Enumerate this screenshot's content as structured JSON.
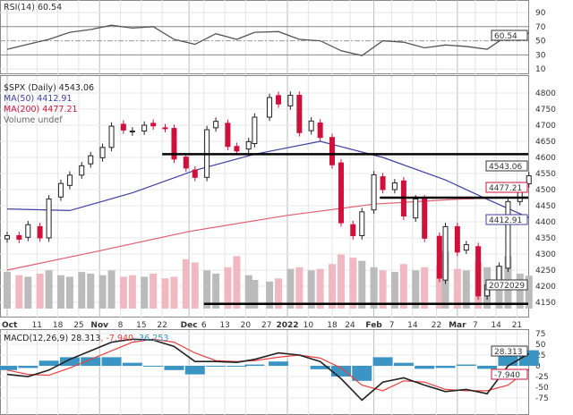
{
  "rsi_panel": {
    "title": "RSI(14) 60.54",
    "value_tag": "60.54",
    "ticks": [
      90,
      70,
      50,
      30,
      10
    ]
  },
  "price_panel": {
    "title": "$SPX (Daily) 4543.06",
    "ma50_label": "MA(50) 4412.91",
    "ma200_label": "MA(200) 4477.21",
    "volume_label": "Volume undef",
    "tags": {
      "close": "4543.06",
      "ma200": "4477.21",
      "ma50": "4412.91",
      "volume": "2072029"
    },
    "ticks": [
      4800,
      4750,
      4700,
      4650,
      4600,
      4550,
      4500,
      4450,
      4400,
      4350,
      4300,
      4250,
      4200,
      4150
    ]
  },
  "macd_panel": {
    "title_macd": "MACD(12,26,9) 28.313",
    "title_signal": ", -7.940",
    "title_hist": ", 36.253",
    "tags": {
      "macd": "28.313",
      "signal": "-7.940",
      "hist": "36.253"
    },
    "ticks": [
      75,
      50,
      25,
      0,
      -25,
      -50,
      -75
    ]
  },
  "colors": {
    "up": "#ffffff",
    "down": "#d0103a",
    "ma50": "#4040a0",
    "ma200": "#e06070",
    "macd": "#222222",
    "signal": "#e84040",
    "hist": "#3a94c4",
    "vol_up": "#bbbbbb",
    "vol_down": "#f0b8c0"
  },
  "chart_data": [
    {
      "type": "line",
      "title": "RSI(14)",
      "ylim": [
        0,
        100
      ],
      "x": [
        "2021-10-01",
        "2021-10-08",
        "2021-10-15",
        "2021-10-22",
        "2021-10-29",
        "2021-11-05",
        "2021-11-12",
        "2021-11-19",
        "2021-11-26",
        "2021-12-03",
        "2021-12-10",
        "2021-12-17",
        "2021-12-23",
        "2021-12-31",
        "2022-01-07",
        "2022-01-14",
        "2022-01-21",
        "2022-01-28",
        "2022-02-04",
        "2022-02-11",
        "2022-02-18",
        "2022-02-25",
        "2022-03-04",
        "2022-03-11",
        "2022-03-18",
        "2022-03-25"
      ],
      "series": [
        {
          "name": "RSI(14)",
          "values": [
            38,
            45,
            52,
            62,
            66,
            72,
            68,
            70,
            52,
            45,
            60,
            52,
            62,
            63,
            52,
            50,
            36,
            29,
            50,
            48,
            40,
            44,
            42,
            38,
            58,
            60.54
          ]
        }
      ]
    },
    {
      "type": "candlestick",
      "title": "$SPX (Daily)",
      "ylim": [
        4130,
        4830
      ],
      "x": [
        "2021-10-01",
        "2021-10-05",
        "2021-10-08",
        "2021-10-12",
        "2021-10-15",
        "2021-10-19",
        "2021-10-22",
        "2021-10-26",
        "2021-10-29",
        "2021-11-02",
        "2021-11-05",
        "2021-11-09",
        "2021-11-12",
        "2021-11-16",
        "2021-11-19",
        "2021-11-23",
        "2021-11-26",
        "2021-11-30",
        "2021-12-03",
        "2021-12-07",
        "2021-12-10",
        "2021-12-14",
        "2021-12-17",
        "2021-12-21",
        "2021-12-23",
        "2021-12-28",
        "2021-12-31",
        "2022-01-04",
        "2022-01-07",
        "2022-01-11",
        "2022-01-14",
        "2022-01-18",
        "2022-01-21",
        "2022-01-25",
        "2022-01-28",
        "2022-02-01",
        "2022-02-04",
        "2022-02-08",
        "2022-02-11",
        "2022-02-15",
        "2022-02-18",
        "2022-02-23",
        "2022-02-25",
        "2022-03-01",
        "2022-03-04",
        "2022-03-08",
        "2022-03-11",
        "2022-03-15",
        "2022-03-18",
        "2022-03-22",
        "2022-03-25"
      ],
      "close": [
        4357,
        4346,
        4391,
        4350,
        4471,
        4519,
        4545,
        4574,
        4605,
        4631,
        4697,
        4685,
        4682,
        4700,
        4698,
        4690,
        4595,
        4567,
        4538,
        4686,
        4712,
        4634,
        4620,
        4649,
        4725,
        4786,
        4766,
        4793,
        4677,
        4713,
        4662,
        4577,
        4397,
        4357,
        4431,
        4546,
        4500,
        4521,
        4418,
        4471,
        4349,
        4225,
        4385,
        4306,
        4329,
        4170,
        4204,
        4262,
        4463,
        4512,
        4543.06
      ],
      "volume": [
        2.3,
        2.1,
        2.0,
        2.2,
        2.4,
        2.1,
        2.0,
        2.3,
        2.2,
        2.1,
        2.4,
        2.0,
        2.1,
        2.0,
        2.2,
        1.9,
        2.0,
        3.1,
        2.9,
        2.4,
        2.2,
        2.6,
        3.3,
        2.1,
        1.8,
        1.7,
        1.9,
        2.5,
        2.6,
        2.4,
        2.5,
        2.8,
        3.4,
        3.2,
        3.0,
        2.6,
        2.4,
        2.3,
        2.8,
        2.4,
        2.6,
        2.7,
        3.6,
        2.5,
        2.4,
        2.9,
        2.6,
        2.7,
        3.3,
        2.2,
        2.07
      ],
      "ma50": {
        "x": [
          "2021-10-01",
          "2021-10-22",
          "2021-11-12",
          "2021-12-03",
          "2021-12-23",
          "2022-01-14",
          "2022-02-04",
          "2022-02-25",
          "2022-03-11",
          "2022-03-25"
        ],
        "values": [
          4440,
          4435,
          4490,
          4560,
          4610,
          4650,
          4600,
          4530,
          4470,
          4412.91
        ]
      },
      "ma200": {
        "x": [
          "2021-10-01",
          "2021-11-01",
          "2021-12-01",
          "2022-01-03",
          "2022-02-01",
          "2022-03-01",
          "2022-03-25"
        ],
        "values": [
          4250,
          4310,
          4370,
          4420,
          4455,
          4470,
          4477.21
        ]
      },
      "horizontal_lines": [
        {
          "value": 4610,
          "from": "2021-11-22"
        },
        {
          "value": 4475,
          "from": "2022-02-03"
        },
        {
          "value": 4145,
          "from": "2021-12-06"
        }
      ]
    },
    {
      "type": "line",
      "title": "MACD(12,26,9)",
      "ylim": [
        -90,
        90
      ],
      "x": [
        "2021-10-01",
        "2021-10-08",
        "2021-10-15",
        "2021-10-22",
        "2021-10-29",
        "2021-11-05",
        "2021-11-12",
        "2021-11-19",
        "2021-11-26",
        "2021-12-03",
        "2021-12-10",
        "2021-12-17",
        "2021-12-23",
        "2021-12-31",
        "2022-01-07",
        "2022-01-14",
        "2022-01-21",
        "2022-01-28",
        "2022-02-04",
        "2022-02-11",
        "2022-02-18",
        "2022-02-25",
        "2022-03-04",
        "2022-03-11",
        "2022-03-18",
        "2022-03-25"
      ],
      "series": [
        {
          "name": "MACD",
          "values": [
            -20,
            -25,
            -10,
            15,
            35,
            55,
            62,
            60,
            45,
            10,
            10,
            8,
            15,
            30,
            25,
            10,
            -30,
            -80,
            -38,
            -28,
            -45,
            -60,
            -55,
            -65,
            0,
            28.313
          ]
        },
        {
          "name": "Signal",
          "values": [
            -10,
            -20,
            -22,
            -5,
            15,
            35,
            55,
            62,
            55,
            30,
            12,
            10,
            12,
            20,
            25,
            18,
            -5,
            -45,
            -58,
            -35,
            -38,
            -55,
            -58,
            -58,
            -45,
            -7.94
          ]
        }
      ]
    }
  ],
  "x_axis": {
    "ticks": [
      {
        "label": "Oct",
        "date": "2021-10-01",
        "bold": true
      },
      {
        "label": "11",
        "date": "2021-10-11"
      },
      {
        "label": "18",
        "date": "2021-10-18"
      },
      {
        "label": "25",
        "date": "2021-10-25"
      },
      {
        "label": "Nov",
        "date": "2021-11-01",
        "bold": true
      },
      {
        "label": "8",
        "date": "2021-11-08"
      },
      {
        "label": "15",
        "date": "2021-11-15"
      },
      {
        "label": "22",
        "date": "2021-11-22"
      },
      {
        "label": "Dec",
        "date": "2021-12-01",
        "bold": true
      },
      {
        "label": "6",
        "date": "2021-12-06"
      },
      {
        "label": "13",
        "date": "2021-12-13"
      },
      {
        "label": "20",
        "date": "2021-12-20"
      },
      {
        "label": "27",
        "date": "2021-12-27"
      },
      {
        "label": "2022",
        "date": "2022-01-03",
        "bold": true
      },
      {
        "label": "10",
        "date": "2022-01-10"
      },
      {
        "label": "18",
        "date": "2022-01-18"
      },
      {
        "label": "24",
        "date": "2022-01-24"
      },
      {
        "label": "Feb",
        "date": "2022-02-01",
        "bold": true
      },
      {
        "label": "7",
        "date": "2022-02-07"
      },
      {
        "label": "14",
        "date": "2022-02-14"
      },
      {
        "label": "22",
        "date": "2022-02-22"
      },
      {
        "label": "Mar",
        "date": "2022-03-01",
        "bold": true
      },
      {
        "label": "7",
        "date": "2022-03-07"
      },
      {
        "label": "14",
        "date": "2022-03-14"
      },
      {
        "label": "21",
        "date": "2022-03-21"
      }
    ]
  }
}
